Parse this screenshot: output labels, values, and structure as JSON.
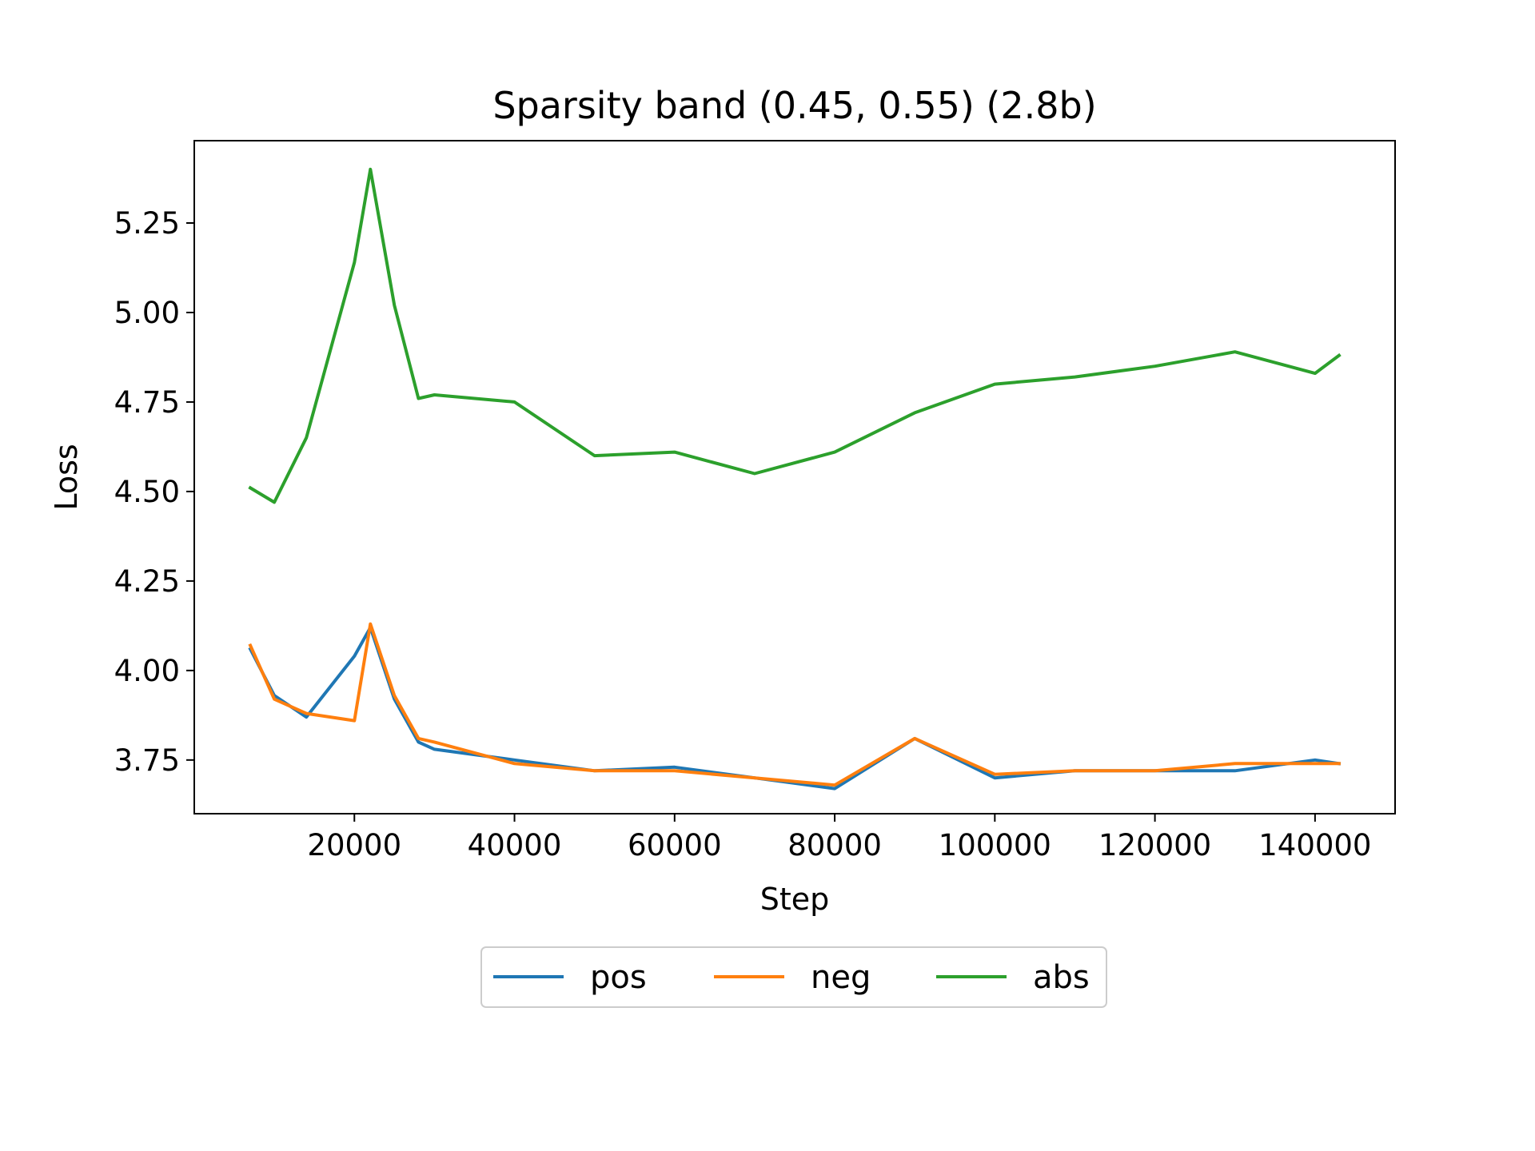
{
  "chart_data": {
    "type": "line",
    "title": "Sparsity band (0.45, 0.55) (2.8b)",
    "xlabel": "Step",
    "ylabel": "Loss",
    "xlim": [
      0,
      150000
    ],
    "ylim": [
      3.6,
      5.48
    ],
    "xticks": [
      20000,
      40000,
      60000,
      80000,
      100000,
      120000,
      140000
    ],
    "yticks": [
      3.75,
      4.0,
      4.25,
      4.5,
      4.75,
      5.0,
      5.25
    ],
    "grid": false,
    "legend": {
      "placement": "bottom-center",
      "columns": 3
    },
    "x": [
      7000,
      10000,
      14000,
      20000,
      22000,
      25000,
      28000,
      30000,
      40000,
      50000,
      60000,
      70000,
      80000,
      90000,
      100000,
      110000,
      120000,
      130000,
      140000,
      143000
    ],
    "series": [
      {
        "name": "pos",
        "color": "#1f77b4",
        "values": [
          4.06,
          3.93,
          3.87,
          4.04,
          4.12,
          3.92,
          3.8,
          3.78,
          3.75,
          3.72,
          3.73,
          3.7,
          3.67,
          3.81,
          3.7,
          3.72,
          3.72,
          3.72,
          3.75,
          3.74
        ]
      },
      {
        "name": "neg",
        "color": "#ff7f0e",
        "values": [
          4.07,
          3.92,
          3.88,
          3.86,
          4.13,
          3.93,
          3.81,
          3.8,
          3.74,
          3.72,
          3.72,
          3.7,
          3.68,
          3.81,
          3.71,
          3.72,
          3.72,
          3.74,
          3.74,
          3.74
        ]
      },
      {
        "name": "abs",
        "color": "#2ca02c",
        "values": [
          4.51,
          4.47,
          4.65,
          5.14,
          5.4,
          5.02,
          4.76,
          4.77,
          4.75,
          4.6,
          4.61,
          4.55,
          4.61,
          4.72,
          4.8,
          4.82,
          4.85,
          4.89,
          4.83,
          4.88
        ]
      }
    ]
  }
}
